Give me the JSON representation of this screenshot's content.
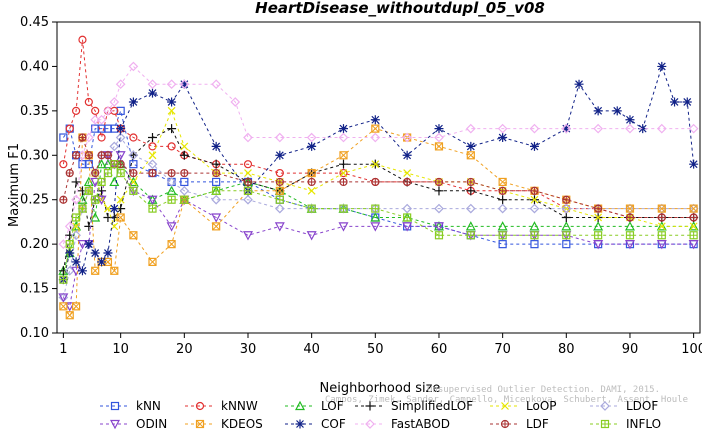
{
  "chart_data": {
    "type": "line",
    "title": "HeartDisease_withoutdupl_05_v08",
    "xlabel": "Neighborhood size",
    "ylabel": "Maximum F1",
    "xlim": [
      0,
      101
    ],
    "ylim": [
      0.1,
      0.45
    ],
    "xticks": [
      1,
      10,
      20,
      30,
      40,
      50,
      60,
      70,
      80,
      90,
      100
    ],
    "yticks": [
      0.1,
      0.15,
      0.2,
      0.25,
      0.3,
      0.35,
      0.4,
      0.45
    ],
    "grid": false,
    "legend_position": "bottom",
    "watermark": "Campos, Zimek, Sander, Campello, Micenkova, Schubert, Assent, Houle",
    "watermark_line1": "Unsupervised Outlier Detection. DAMI, 2015.",
    "series": [
      {
        "name": "kNN",
        "color": "#3355dd",
        "marker": "square",
        "x": [
          1,
          2,
          3,
          4,
          5,
          6,
          7,
          8,
          9,
          10,
          12,
          15,
          18,
          20,
          25,
          30,
          35,
          40,
          45,
          50,
          55,
          60,
          65,
          70,
          75,
          80,
          85,
          90,
          95,
          100
        ],
        "y": [
          0.32,
          0.33,
          0.3,
          0.29,
          0.29,
          0.33,
          0.33,
          0.33,
          0.33,
          0.35,
          0.29,
          0.28,
          0.27,
          0.27,
          0.27,
          0.27,
          0.25,
          0.24,
          0.24,
          0.23,
          0.22,
          0.22,
          0.21,
          0.2,
          0.2,
          0.2,
          0.2,
          0.2,
          0.2,
          0.2
        ]
      },
      {
        "name": "kNNW",
        "color": "#e23030",
        "marker": "circle",
        "x": [
          1,
          2,
          3,
          4,
          5,
          6,
          7,
          8,
          9,
          10,
          12,
          15,
          18,
          20,
          25,
          30,
          35,
          40,
          45,
          50,
          55,
          60,
          65,
          70,
          75,
          80,
          85,
          90,
          95,
          100
        ],
        "y": [
          0.29,
          0.33,
          0.35,
          0.43,
          0.36,
          0.35,
          0.32,
          0.35,
          0.35,
          0.33,
          0.32,
          0.31,
          0.31,
          0.3,
          0.29,
          0.29,
          0.28,
          0.28,
          0.28,
          0.27,
          0.27,
          0.27,
          0.26,
          0.26,
          0.26,
          0.24,
          0.24,
          0.23,
          0.23,
          0.23
        ]
      },
      {
        "name": "LOF",
        "color": "#22bb22",
        "marker": "triangle-up",
        "x": [
          1,
          2,
          3,
          4,
          5,
          6,
          7,
          8,
          9,
          10,
          12,
          15,
          18,
          20,
          25,
          30,
          35,
          40,
          45,
          50,
          55,
          60,
          65,
          70,
          75,
          80,
          85,
          90,
          95,
          100
        ],
        "y": [
          0.17,
          0.19,
          0.22,
          0.25,
          0.27,
          0.23,
          0.29,
          0.29,
          0.27,
          0.29,
          0.27,
          0.25,
          0.26,
          0.25,
          0.26,
          0.27,
          0.26,
          0.24,
          0.24,
          0.23,
          0.23,
          0.22,
          0.22,
          0.22,
          0.22,
          0.22,
          0.22,
          0.22,
          0.22,
          0.22
        ]
      },
      {
        "name": "SimplifiedLOF",
        "color": "#111111",
        "marker": "plus",
        "x": [
          1,
          2,
          3,
          4,
          5,
          6,
          7,
          8,
          9,
          10,
          12,
          15,
          18,
          20,
          25,
          30,
          35,
          40,
          45,
          50,
          55,
          60,
          65,
          70,
          75,
          80,
          85,
          90,
          95,
          100
        ],
        "y": [
          0.17,
          0.21,
          0.27,
          0.26,
          0.22,
          0.25,
          0.26,
          0.23,
          0.23,
          0.24,
          0.3,
          0.32,
          0.33,
          0.3,
          0.29,
          0.27,
          0.26,
          0.28,
          0.29,
          0.29,
          0.27,
          0.26,
          0.26,
          0.25,
          0.25,
          0.23,
          0.23,
          0.23,
          0.23,
          0.23
        ]
      },
      {
        "name": "LoOP",
        "color": "#e6e600",
        "marker": "x",
        "x": [
          1,
          2,
          3,
          4,
          5,
          6,
          7,
          8,
          9,
          10,
          12,
          15,
          18,
          20,
          25,
          30,
          35,
          40,
          45,
          50,
          55,
          60,
          65,
          70,
          75,
          80,
          85,
          90,
          95,
          100
        ],
        "y": [
          0.16,
          0.19,
          0.22,
          0.24,
          0.26,
          0.28,
          0.25,
          0.24,
          0.22,
          0.25,
          0.27,
          0.3,
          0.35,
          0.31,
          0.28,
          0.28,
          0.27,
          0.26,
          0.28,
          0.29,
          0.28,
          0.27,
          0.27,
          0.26,
          0.25,
          0.24,
          0.23,
          0.23,
          0.22,
          0.22
        ]
      },
      {
        "name": "LDOF",
        "color": "#aaaadd",
        "marker": "diamond",
        "x": [
          1,
          2,
          3,
          4,
          5,
          6,
          7,
          8,
          9,
          10,
          12,
          15,
          18,
          20,
          25,
          30,
          35,
          40,
          45,
          50,
          55,
          60,
          65,
          70,
          75,
          80,
          85,
          90,
          95,
          100
        ],
        "y": [
          0.14,
          0.17,
          0.21,
          0.24,
          0.26,
          0.28,
          0.3,
          0.3,
          0.31,
          0.32,
          0.3,
          0.29,
          0.27,
          0.26,
          0.25,
          0.25,
          0.24,
          0.24,
          0.24,
          0.24,
          0.24,
          0.24,
          0.24,
          0.24,
          0.24,
          0.24,
          0.24,
          0.24,
          0.24,
          0.24
        ]
      },
      {
        "name": "ODIN",
        "color": "#8844cc",
        "marker": "triangle-down",
        "x": [
          1,
          2,
          3,
          4,
          5,
          6,
          7,
          8,
          9,
          10,
          12,
          15,
          18,
          20,
          25,
          30,
          35,
          40,
          45,
          50,
          55,
          60,
          65,
          70,
          75,
          80,
          85,
          90,
          95,
          100
        ],
        "y": [
          0.14,
          0.13,
          0.17,
          0.2,
          0.2,
          0.27,
          0.25,
          0.3,
          0.29,
          0.3,
          0.26,
          0.25,
          0.22,
          0.25,
          0.23,
          0.21,
          0.22,
          0.21,
          0.22,
          0.22,
          0.22,
          0.22,
          0.21,
          0.21,
          0.21,
          0.21,
          0.2,
          0.2,
          0.2,
          0.2
        ]
      },
      {
        "name": "KDEOS",
        "color": "#f0a020",
        "marker": "square-x",
        "x": [
          1,
          2,
          3,
          4,
          5,
          6,
          7,
          8,
          9,
          10,
          12,
          15,
          18,
          20,
          25,
          30,
          35,
          40,
          45,
          50,
          55,
          60,
          65,
          70,
          75,
          80,
          85,
          90,
          95,
          100
        ],
        "y": [
          0.13,
          0.12,
          0.13,
          0.32,
          0.3,
          0.17,
          0.18,
          0.18,
          0.17,
          0.23,
          0.21,
          0.18,
          0.2,
          0.25,
          0.22,
          0.26,
          0.26,
          0.28,
          0.3,
          0.33,
          0.32,
          0.31,
          0.3,
          0.27,
          0.26,
          0.25,
          0.24,
          0.24,
          0.24,
          0.24
        ]
      },
      {
        "name": "COF",
        "color": "#112288",
        "marker": "star",
        "x": [
          1,
          2,
          3,
          4,
          5,
          6,
          7,
          8,
          9,
          10,
          12,
          15,
          18,
          20,
          25,
          30,
          35,
          40,
          45,
          50,
          55,
          60,
          65,
          70,
          75,
          80,
          82,
          85,
          88,
          90,
          92,
          95,
          97,
          99,
          100
        ],
        "y": [
          0.16,
          0.19,
          0.18,
          0.17,
          0.2,
          0.19,
          0.18,
          0.19,
          0.24,
          0.33,
          0.36,
          0.37,
          0.36,
          0.38,
          0.31,
          0.26,
          0.3,
          0.31,
          0.33,
          0.34,
          0.3,
          0.33,
          0.31,
          0.32,
          0.31,
          0.33,
          0.38,
          0.35,
          0.35,
          0.34,
          0.33,
          0.4,
          0.36,
          0.36,
          0.29
        ]
      },
      {
        "name": "FastABOD",
        "color": "#f0b0f0",
        "marker": "diamond",
        "x": [
          1,
          2,
          3,
          4,
          5,
          6,
          7,
          8,
          9,
          10,
          12,
          15,
          18,
          20,
          25,
          28,
          30,
          35,
          40,
          45,
          50,
          55,
          60,
          65,
          70,
          75,
          80,
          85,
          90,
          95,
          100
        ],
        "y": [
          0.2,
          0.22,
          0.25,
          0.3,
          0.32,
          0.34,
          0.34,
          0.35,
          0.36,
          0.38,
          0.4,
          0.38,
          0.38,
          0.38,
          0.38,
          0.36,
          0.32,
          0.32,
          0.32,
          0.32,
          0.32,
          0.32,
          0.32,
          0.33,
          0.33,
          0.33,
          0.33,
          0.33,
          0.33,
          0.33,
          0.33
        ]
      },
      {
        "name": "LDF",
        "color": "#aa3333",
        "marker": "circle-plus",
        "x": [
          1,
          2,
          3,
          4,
          5,
          6,
          7,
          8,
          9,
          10,
          12,
          15,
          18,
          20,
          25,
          30,
          35,
          40,
          45,
          50,
          55,
          60,
          65,
          70,
          75,
          80,
          85,
          90,
          95,
          100
        ],
        "y": [
          0.25,
          0.28,
          0.3,
          0.32,
          0.3,
          0.28,
          0.3,
          0.3,
          0.29,
          0.29,
          0.28,
          0.28,
          0.28,
          0.28,
          0.28,
          0.27,
          0.27,
          0.27,
          0.27,
          0.27,
          0.27,
          0.27,
          0.27,
          0.26,
          0.26,
          0.25,
          0.24,
          0.23,
          0.23,
          0.23
        ]
      },
      {
        "name": "INFLO",
        "color": "#88cc22",
        "marker": "square-cross",
        "x": [
          1,
          2,
          3,
          4,
          5,
          6,
          7,
          8,
          9,
          10,
          12,
          15,
          18,
          20,
          25,
          30,
          35,
          40,
          45,
          50,
          55,
          60,
          65,
          70,
          75,
          80,
          85,
          90,
          95,
          100
        ],
        "y": [
          0.16,
          0.2,
          0.23,
          0.24,
          0.26,
          0.25,
          0.27,
          0.28,
          0.29,
          0.28,
          0.26,
          0.24,
          0.25,
          0.25,
          0.26,
          0.26,
          0.25,
          0.24,
          0.24,
          0.24,
          0.23,
          0.21,
          0.21,
          0.21,
          0.21,
          0.21,
          0.21,
          0.21,
          0.21,
          0.21
        ]
      }
    ]
  }
}
